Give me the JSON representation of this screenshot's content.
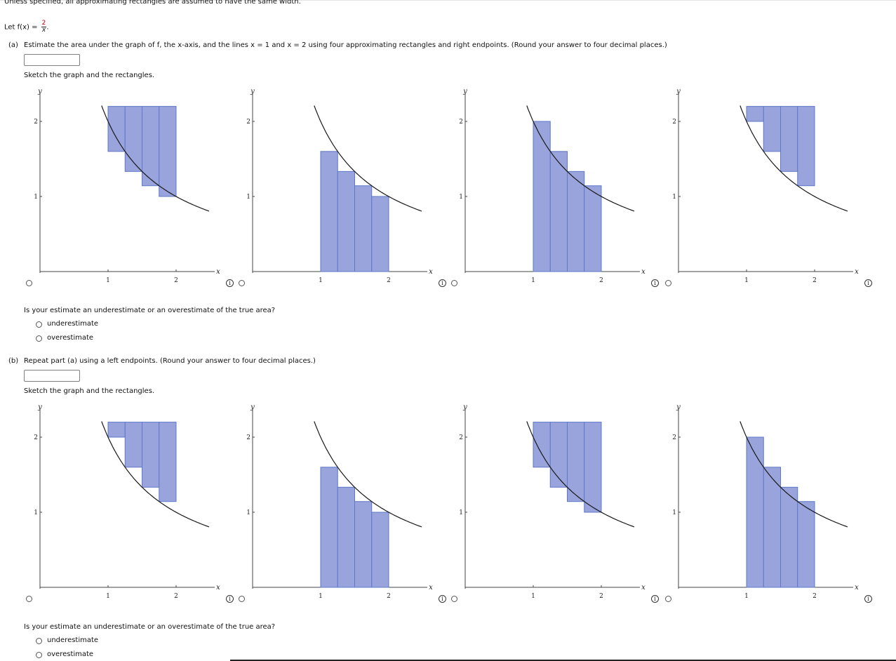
{
  "instructions": "Unless specified, all approximating rectangles are assumed to have the same width.",
  "function": {
    "prefix": "Let f(x) = ",
    "numerator": "2",
    "denominator": "x",
    "suffix": "."
  },
  "part_a": {
    "label": "(a)",
    "question": "Estimate the area under the graph of f, the x-axis, and the lines x = 1 and x = 2 using four approximating rectangles and right endpoints. (Round your answer to four decimal places.)",
    "answer_value": "",
    "sketch_prompt": "Sketch the graph and the rectangles.",
    "estimate_question": "Is your estimate an underestimate or an overestimate of the true area?",
    "options": [
      "underestimate",
      "overestimate"
    ]
  },
  "part_b": {
    "label": "(b)",
    "question": "Repeat part (a) using a left endpoints. (Round your answer to four decimal places.)",
    "answer_value": "",
    "sketch_prompt": "Sketch the graph and the rectangles.",
    "estimate_question": "Is your estimate an underestimate or an overestimate of the true area?",
    "options": [
      "underestimate",
      "overestimate"
    ]
  },
  "graph_labels": {
    "x_axis": "x",
    "y_axis": "y",
    "x_ticks": [
      "1",
      "2"
    ],
    "y_ticks": [
      "1",
      "2"
    ],
    "info_glyph": "i"
  },
  "colors": {
    "rect_fill": "#99a3dc",
    "rect_stroke": "#5f78c8",
    "curve": "#1a1a1a",
    "axis": "#444444"
  },
  "graphs_a": [
    {
      "type": "hanging-from-top",
      "heights_at": "right"
    },
    {
      "type": "from-axis",
      "heights_at": "right"
    },
    {
      "type": "from-axis",
      "heights_at": "left"
    },
    {
      "type": "hanging-from-top",
      "heights_at": "left"
    }
  ],
  "graphs_b": [
    {
      "type": "hanging-from-top",
      "heights_at": "left"
    },
    {
      "type": "from-axis",
      "heights_at": "right"
    },
    {
      "type": "hanging-from-top",
      "heights_at": "right"
    },
    {
      "type": "from-axis",
      "heights_at": "left"
    }
  ]
}
